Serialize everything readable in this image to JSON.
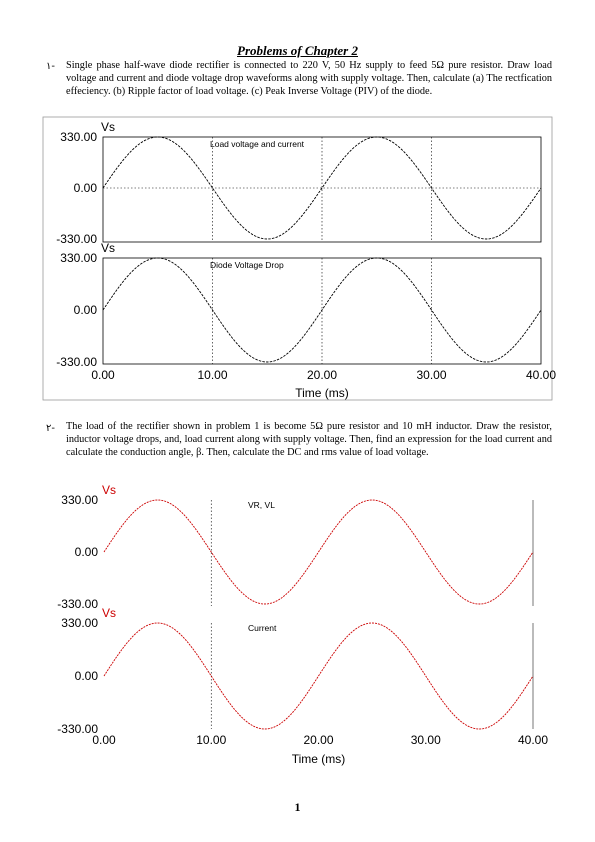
{
  "title": "Problems of Chapter 2",
  "problems": [
    {
      "number": "١-",
      "text": "Single phase half-wave diode rectifier is connected to 220 V, 50 Hz supply to feed 5Ω pure resistor. Draw load voltage and current and diode voltage drop waveforms along with supply voltage. Then, calculate (a) The rectfication effeciency. (b) Ripple factor of load voltage. (c) Peak Inverse Voltage (PIV) of the diode."
    },
    {
      "number": "٢-",
      "text": "The load of the rectifier shown in problem 1 is become 5Ω pure resistor and 10 mH inductor. Draw the resistor, inductor voltage drops, and, load current along with supply voltage. Then, find an expression for the load current and calculate the conduction angle, β. Then, calculate the DC and rms value of load voltage."
    }
  ],
  "page_number": "1",
  "chart_data": [
    {
      "type": "line",
      "color": "#000000",
      "xlabel": "Time (ms)",
      "xlim": [
        0,
        40
      ],
      "xticks": [
        "0.00",
        "10.00",
        "20.00",
        "30.00",
        "40.00"
      ],
      "vlines": [
        10,
        20,
        30
      ],
      "panels": [
        {
          "ylabel": "Vs",
          "ylim": [
            -330,
            330
          ],
          "yticks": [
            "330.00",
            "0.00",
            "-330.00"
          ],
          "annotation": "Load voltage and current",
          "zero_line": true,
          "series": [
            {
              "function": "330*sin(2*pi*50*t)",
              "amplitude": 330,
              "frequency_hz": 50
            }
          ]
        },
        {
          "ylabel": "Vs",
          "ylim": [
            -330,
            330
          ],
          "yticks": [
            "330.00",
            "0.00",
            "-330.00"
          ],
          "annotation": "Diode Voltage Drop",
          "zero_line": false,
          "series": [
            {
              "function": "330*sin(2*pi*50*t)",
              "amplitude": 330,
              "frequency_hz": 50
            }
          ]
        }
      ]
    },
    {
      "type": "line",
      "color": "#cc0000",
      "xlabel": "Time (ms)",
      "xlim": [
        0,
        40
      ],
      "xticks": [
        "0.00",
        "10.00",
        "20.00",
        "30.00",
        "40.00"
      ],
      "vlines": [
        10
      ],
      "panels": [
        {
          "ylabel": "Vs",
          "ylim": [
            -330,
            330
          ],
          "yticks": [
            "330.00",
            "0.00",
            "-330.00"
          ],
          "annotation": "VR, VL",
          "zero_line": false,
          "series": [
            {
              "function": "330*sin(2*pi*50*t)",
              "amplitude": 330,
              "frequency_hz": 50
            }
          ]
        },
        {
          "ylabel": "Vs",
          "ylim": [
            -330,
            330
          ],
          "yticks": [
            "330.00",
            "0.00",
            "-330.00"
          ],
          "annotation": "Current",
          "zero_line": false,
          "series": [
            {
              "function": "330*sin(2*pi*50*t)",
              "amplitude": 330,
              "frequency_hz": 50
            }
          ]
        }
      ]
    }
  ]
}
